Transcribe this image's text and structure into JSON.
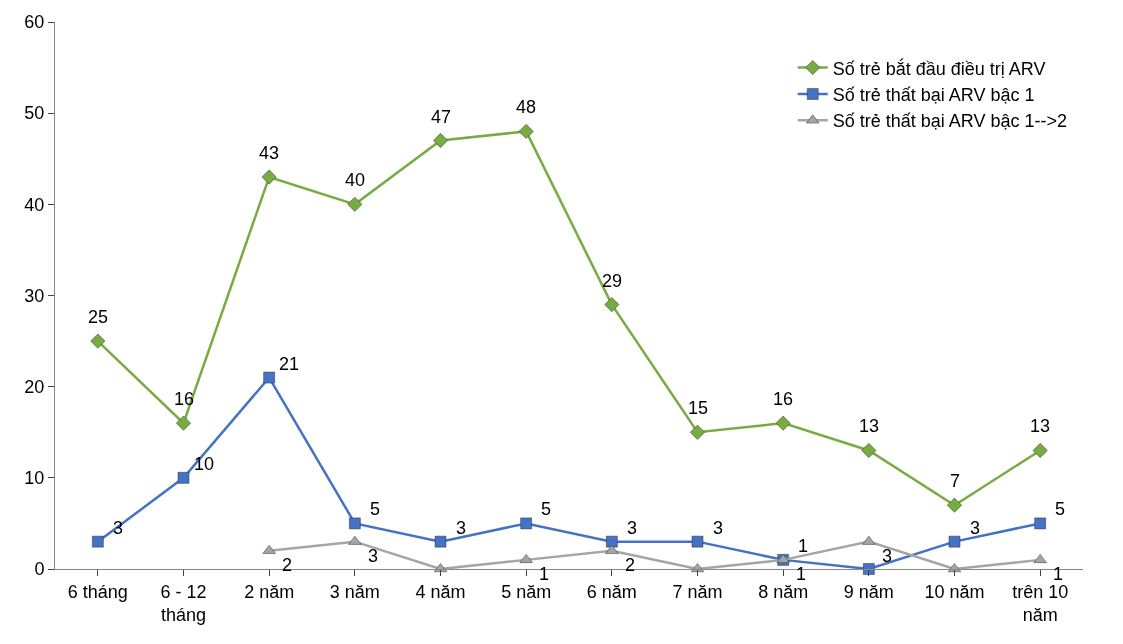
{
  "chart_data": {
    "type": "line",
    "categories": [
      "6 tháng",
      "6 - 12 tháng",
      "2 năm",
      "3 năm",
      "4 năm",
      "5 năm",
      "6 năm",
      "7 năm",
      "8 năm",
      "9 năm",
      "10 năm",
      "trên 10 năm"
    ],
    "series": [
      {
        "name": "Số trẻ bắt đầu điều trị ARV",
        "color": "#77ac41",
        "marker": "diamond",
        "values": [
          25,
          16,
          43,
          40,
          47,
          48,
          29,
          15,
          16,
          13,
          7,
          13
        ],
        "value_labels": [
          "25",
          "16",
          "43",
          "40",
          "47",
          "48",
          "29",
          "15",
          "16",
          "13",
          "7",
          "13"
        ]
      },
      {
        "name": "Số trẻ thất bại ARV bậc 1",
        "color": "#4472c4",
        "marker": "square",
        "values": [
          3,
          10,
          21,
          5,
          3,
          5,
          3,
          3,
          1,
          0,
          3,
          5
        ],
        "value_labels": [
          "3",
          "10",
          "21",
          "5",
          "3",
          "5",
          "3",
          "3",
          "1",
          null,
          "3",
          "5"
        ]
      },
      {
        "name": "Số trẻ thất bại ARV bậc 1-->2",
        "color": "#a5a5a5",
        "marker": "triangle",
        "values": [
          null,
          null,
          2,
          3,
          0,
          1,
          2,
          0,
          1,
          3,
          0,
          1
        ],
        "value_labels": [
          null,
          null,
          "2",
          "3",
          null,
          "1",
          "2",
          null,
          "1",
          "3",
          null,
          "1"
        ]
      }
    ],
    "ylim": [
      0,
      60
    ],
    "yticks": [
      0,
      10,
      20,
      30,
      40,
      50,
      60
    ],
    "legend": "top right"
  }
}
